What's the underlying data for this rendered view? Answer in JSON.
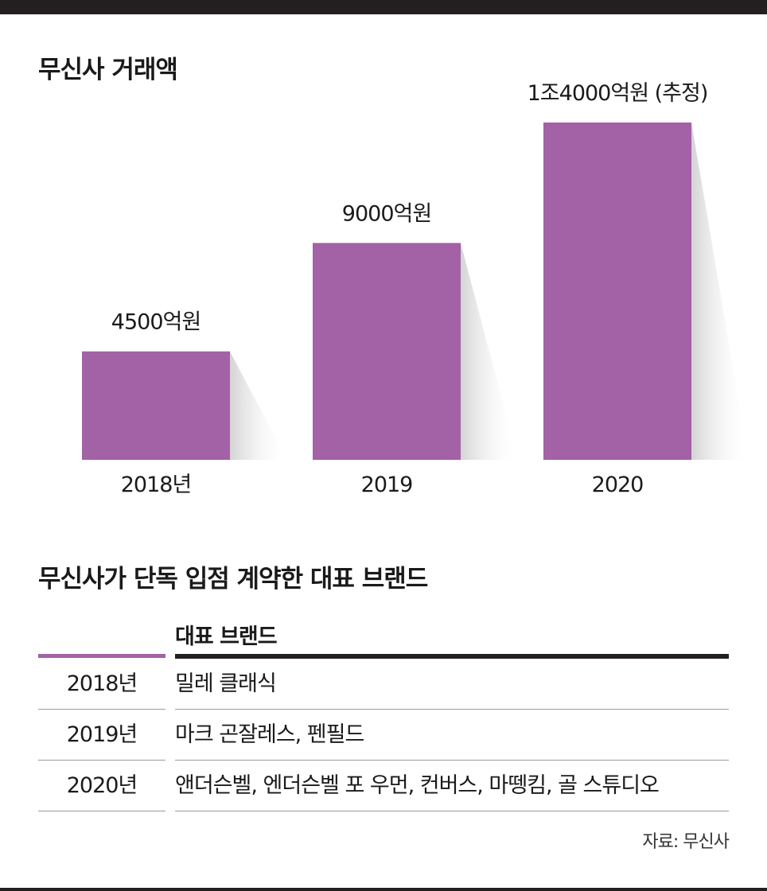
{
  "chart_data": {
    "type": "bar",
    "title": "무신사 거래액",
    "categories": [
      "2018년",
      "2019",
      "2020"
    ],
    "values": [
      4500,
      9000,
      14000
    ],
    "data_labels": [
      "4500억원",
      "9000억원",
      "1조4000억원 (추정)"
    ],
    "unit": "억원",
    "ylim": [
      0,
      14000
    ],
    "bar_color": "#a361a6",
    "grid": false,
    "legend": "none"
  },
  "table": {
    "title": "무신사가 단독 입점 계약한 대표 브랜드",
    "header": "대표 브랜드",
    "rows": [
      {
        "year": "2018년",
        "brands": "밀레 클래식"
      },
      {
        "year": "2019년",
        "brands": "마크 곤잘레스, 펜필드"
      },
      {
        "year": "2020년",
        "brands": "앤더슨벨, 엔더슨벨 포 우먼, 컨버스, 마뗑킴, 골 스튜디오"
      }
    ],
    "accent_color": "#a361a6"
  },
  "source": "자료: 무신사"
}
